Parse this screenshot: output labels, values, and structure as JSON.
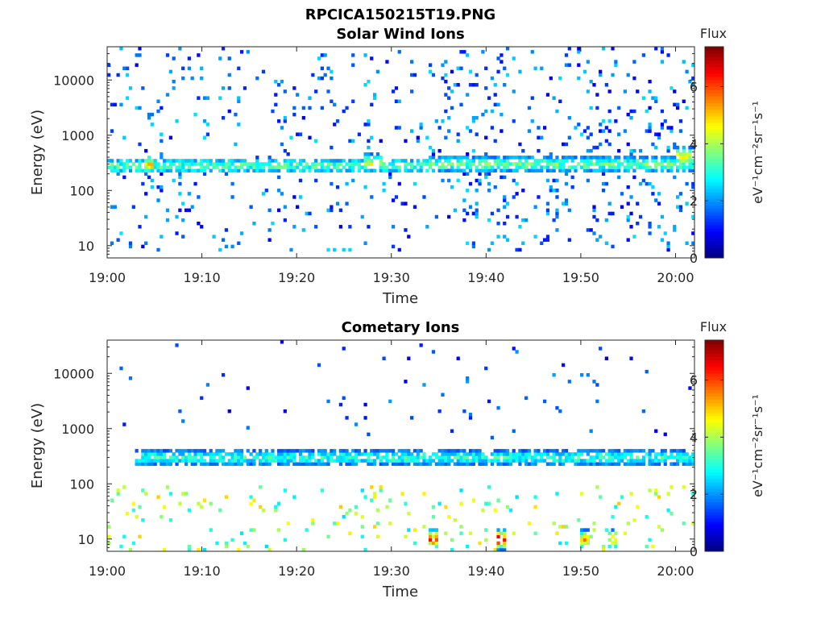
{
  "figure_title": "RPCICA150215T19.PNG",
  "colorbar": {
    "title": "Flux",
    "unit_label": "eV⁻¹cm⁻²sr⁻¹s⁻¹",
    "ticks": [
      "0",
      "2",
      "4",
      "6"
    ],
    "range": [
      0,
      7.4
    ],
    "colormap": "jet"
  },
  "chart_data": [
    {
      "type": "heatmap",
      "title": "Solar Wind Ions",
      "xlabel": "Time",
      "ylabel": "Energy (eV)",
      "x_ticks": [
        "19:00",
        "19:10",
        "19:20",
        "19:30",
        "19:40",
        "19:50",
        "20:00"
      ],
      "y_ticks": [
        "10",
        "100",
        "1000",
        "10000"
      ],
      "y_scale": "log",
      "ylim": [
        6,
        40000
      ],
      "xlim": [
        "19:00",
        "20:02"
      ],
      "bands": [
        {
          "start": "19:00",
          "end": "19:34",
          "energy_peak_eV": 280,
          "flux": 3.2
        },
        {
          "start": "19:04",
          "end": "19:05",
          "energy_peak_eV": 300,
          "flux": 4.8
        },
        {
          "start": "19:27",
          "end": "19:29",
          "energy_peak_eV": 320,
          "flux": 4.3
        },
        {
          "start": "19:34",
          "end": "20:02",
          "energy_peak_eV": 300,
          "flux": 3.4
        },
        {
          "start": "20:00",
          "end": "20:02",
          "energy_peak_eV": 420,
          "flux": 4.5
        }
      ]
    },
    {
      "type": "heatmap",
      "title": "Cometary Ions",
      "xlabel": "Time",
      "ylabel": "Energy (eV)",
      "x_ticks": [
        "19:00",
        "19:10",
        "19:20",
        "19:30",
        "19:40",
        "19:50",
        "20:00"
      ],
      "y_ticks": [
        "10",
        "100",
        "1000",
        "10000"
      ],
      "y_scale": "log",
      "ylim": [
        6,
        40000
      ],
      "xlim": [
        "19:00",
        "20:02"
      ],
      "bands": [
        {
          "start": "19:03",
          "end": "20:02",
          "energy_peak_eV": 300,
          "flux": 3.0
        },
        {
          "start": "19:34",
          "end": "19:35",
          "energy_peak_eV": 10,
          "flux": 5.5
        },
        {
          "start": "19:41",
          "end": "19:42",
          "energy_peak_eV": 10,
          "flux": 6.2
        },
        {
          "start": "19:50",
          "end": "19:51",
          "energy_peak_eV": 10,
          "flux": 5.0
        },
        {
          "start": "19:53",
          "end": "19:54",
          "energy_peak_eV": 10,
          "flux": 4.8
        }
      ]
    }
  ]
}
